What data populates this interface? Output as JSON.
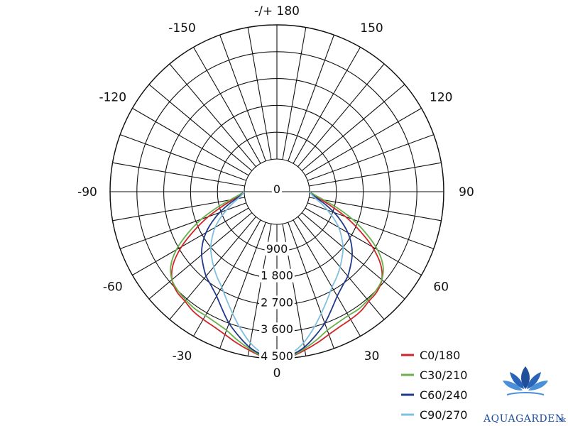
{
  "chart_data": {
    "type": "polar",
    "title": "",
    "angle_labels": [
      {
        "angle": 180,
        "text": "-/+ 180"
      },
      {
        "angle": 150,
        "text": "150"
      },
      {
        "angle": -150,
        "text": "-150"
      },
      {
        "angle": 120,
        "text": "120"
      },
      {
        "angle": -120,
        "text": "-120"
      },
      {
        "angle": 90,
        "text": "90"
      },
      {
        "angle": -90,
        "text": "-90"
      },
      {
        "angle": 60,
        "text": "60"
      },
      {
        "angle": -60,
        "text": "-60"
      },
      {
        "angle": 30,
        "text": "30"
      },
      {
        "angle": -30,
        "text": "-30"
      },
      {
        "angle": 0,
        "text": "0"
      }
    ],
    "radial_ticks": [
      0,
      900,
      1800,
      2700,
      3600,
      4500
    ],
    "radial_tick_labels": [
      "0",
      "900",
      "1 800",
      "2 700",
      "3 600",
      "4 500"
    ],
    "r_range": [
      0,
      4500
    ],
    "spoke_step_deg": 10,
    "grid": true,
    "legend_position": "bottom-right",
    "series": [
      {
        "name": "C0/180",
        "color": "#d0262b",
        "angles": [
          0,
          5,
          10,
          15,
          20,
          25,
          30,
          35,
          40,
          45,
          50,
          55,
          60,
          65,
          70,
          75,
          80,
          85,
          90
        ],
        "values": [
          4500,
          4450,
          4300,
          4150,
          4000,
          3900,
          3850,
          3800,
          3700,
          3650,
          3500,
          3150,
          2600,
          1950,
          1350,
          800,
          400,
          150,
          0
        ]
      },
      {
        "name": "C30/210",
        "color": "#6ab04c",
        "angles": [
          0,
          5,
          10,
          15,
          20,
          25,
          30,
          35,
          40,
          45,
          50,
          55,
          60,
          65,
          70,
          75,
          80,
          85,
          90
        ],
        "values": [
          4500,
          4440,
          4250,
          4050,
          3850,
          3750,
          3700,
          3700,
          3650,
          3600,
          3500,
          3250,
          2800,
          2200,
          1600,
          1000,
          500,
          180,
          0
        ]
      },
      {
        "name": "C60/240",
        "color": "#1f3a8a",
        "angles": [
          0,
          5,
          10,
          15,
          20,
          25,
          30,
          35,
          40,
          45,
          50,
          55,
          60,
          65,
          70,
          75,
          80,
          85,
          90
        ],
        "values": [
          4500,
          4400,
          4200,
          3900,
          3600,
          3250,
          2950,
          2750,
          2600,
          2400,
          2200,
          1950,
          1650,
          1300,
          950,
          600,
          300,
          100,
          0
        ]
      },
      {
        "name": "C90/270",
        "color": "#7fbfdf",
        "angles": [
          0,
          5,
          10,
          15,
          20,
          25,
          30,
          35,
          40,
          45,
          50,
          55,
          60,
          65,
          70,
          75,
          80,
          85,
          90
        ],
        "values": [
          4500,
          4350,
          4050,
          3650,
          3250,
          2900,
          2600,
          2400,
          2200,
          2000,
          1800,
          1550,
          1300,
          1000,
          700,
          450,
          220,
          80,
          0
        ]
      }
    ]
  },
  "brand": {
    "name": "AQUAGARDEN",
    "suffix": ".sk",
    "colors": {
      "primary": "#1f4e9a",
      "accent": "#4a90d9"
    }
  }
}
